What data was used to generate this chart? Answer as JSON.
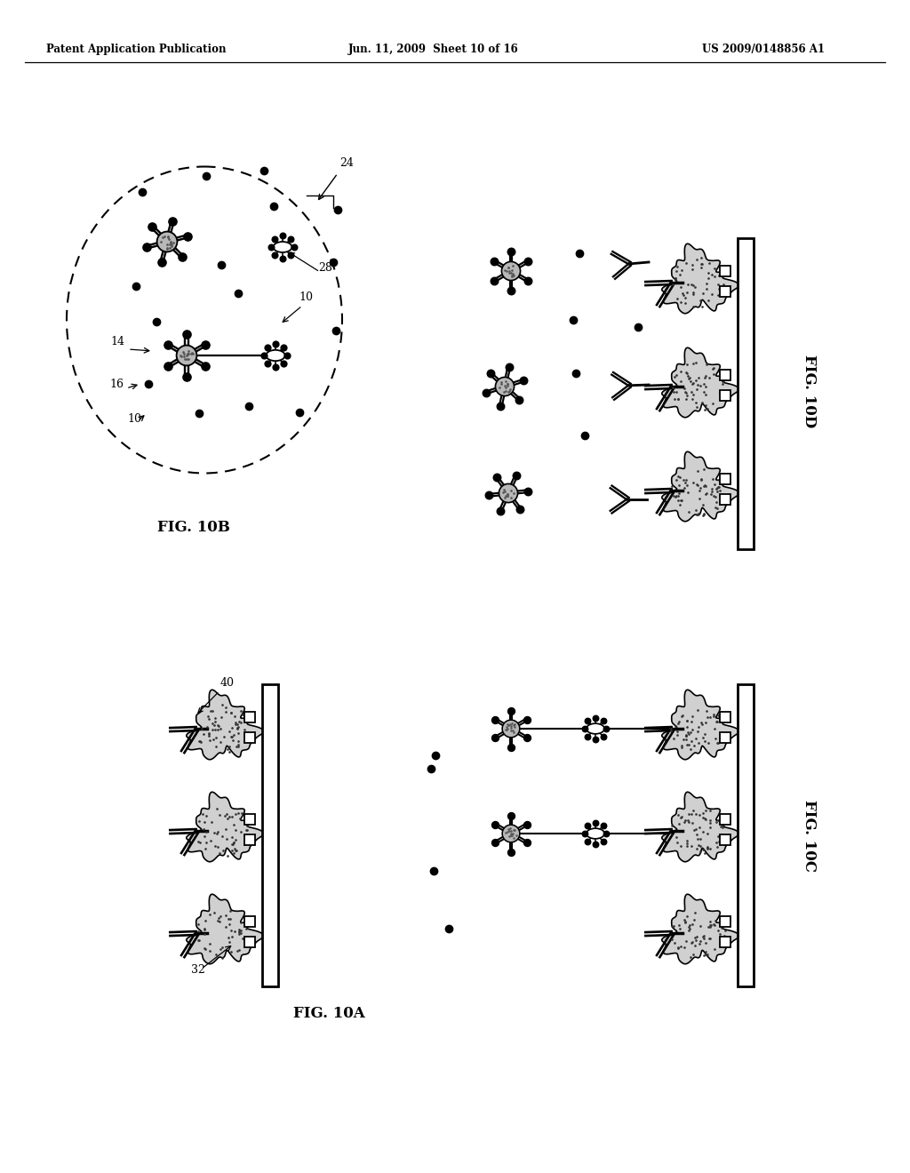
{
  "bg": "#ffffff",
  "header_left": "Patent Application Publication",
  "header_center": "Jun. 11, 2009  Sheet 10 of 16",
  "header_right": "US 2009/0148856 A1",
  "figB_label": "FIG. 10B",
  "figD_label": "FIG. 10D",
  "figA_label": "FIG. 10A",
  "figC_label": "FIG. 10C"
}
